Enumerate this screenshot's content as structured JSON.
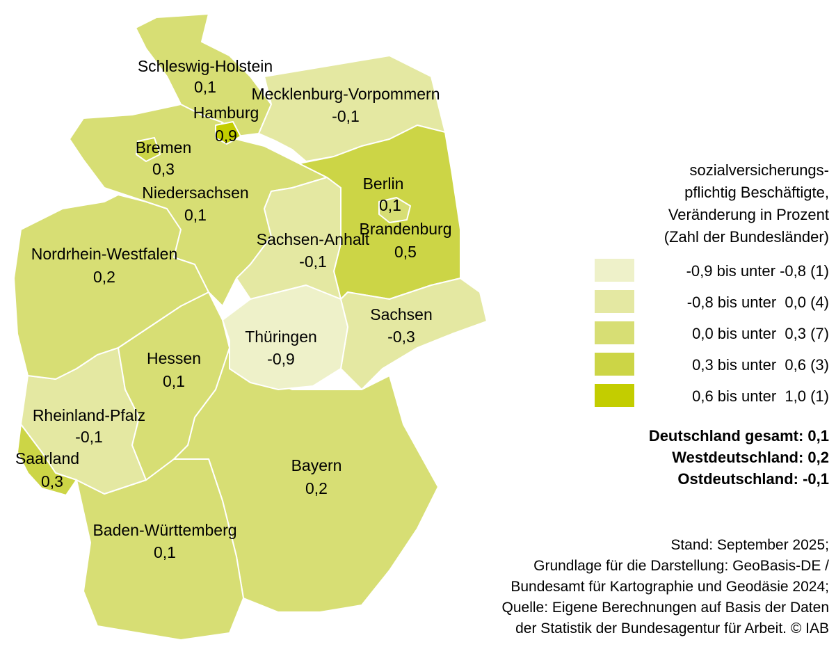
{
  "regions": [
    {
      "name": "Bayern",
      "value": "0,2",
      "color": "#d7de74"
    },
    {
      "name": "Baden-Württemberg",
      "value": "0,1",
      "color": "#d7de74"
    },
    {
      "name": "Saarland",
      "value": "0,3",
      "color": "#ccd546"
    },
    {
      "name": "Rheinland-Pfalz",
      "value": "-0,1",
      "color": "#e4e8a2"
    },
    {
      "name": "Hessen",
      "value": "0,1",
      "color": "#d7de74"
    },
    {
      "name": "Nordrhein-Westfalen",
      "value": "0,2",
      "color": "#d7de74"
    },
    {
      "name": "Niedersachsen",
      "value": "0,1",
      "color": "#d7de74"
    },
    {
      "name": "Bremen",
      "value": "0,3",
      "color": "#ccd546"
    },
    {
      "name": "Schleswig-Holstein",
      "value": "0,1",
      "color": "#d7de74"
    },
    {
      "name": "Hamburg",
      "value": "0,9",
      "color": "#c3cd00"
    },
    {
      "name": "Mecklenburg-Vorpommern",
      "value": "-0,1",
      "color": "#e4e8a2"
    },
    {
      "name": "Brandenburg",
      "value": "0,5",
      "color": "#ccd546"
    },
    {
      "name": "Berlin",
      "value": "0,1",
      "color": "#d7de74"
    },
    {
      "name": "Sachsen-Anhalt",
      "value": "-0,1",
      "color": "#e4e8a2"
    },
    {
      "name": "Sachsen",
      "value": "-0,3",
      "color": "#e4e8a2"
    },
    {
      "name": "Thüringen",
      "value": "-0,9",
      "color": "#eef1c9"
    }
  ],
  "legend": {
    "title": [
      "sozialversicherungs-",
      "pflichtig Beschäftigte,",
      "Veränderung in Prozent",
      "(Zahl der Bundesländer)"
    ],
    "classes": [
      {
        "label": "-0,9 bis unter -0,8 (1)",
        "color": "#eef1c9"
      },
      {
        "label": "-0,8 bis unter  0,0 (4)",
        "color": "#e4e8a2"
      },
      {
        "label": "0,0 bis unter  0,3 (7)",
        "color": "#d7de74"
      },
      {
        "label": "0,3 bis unter  0,6 (3)",
        "color": "#ccd546"
      },
      {
        "label": "0,6 bis unter  1,0 (1)",
        "color": "#c3cd00"
      }
    ]
  },
  "totals": [
    "Deutschland gesamt: 0,1",
    "Westdeutschland: 0,2",
    "Ostdeutschland: -0,1"
  ],
  "source": [
    "Stand: September 2025;",
    "Grundlage für die Darstellung: GeoBasis-DE /",
    "Bundesamt für Kartographie und Geodäsie 2024;",
    "Quelle: Eigene Berechnungen auf Basis der Daten",
    "der Statistik der Bundesagentur für Arbeit. © IAB"
  ]
}
